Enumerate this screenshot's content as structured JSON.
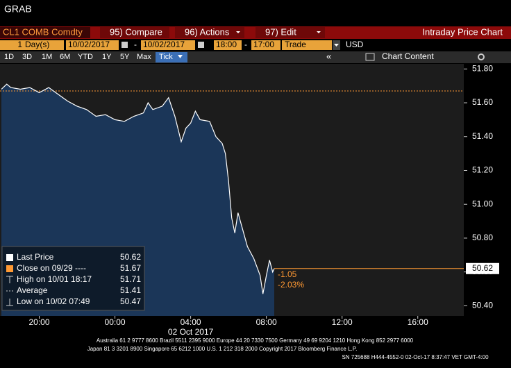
{
  "header": {
    "title": "GRAB"
  },
  "toolbar": {
    "security": "CL1 COMB Comdty",
    "buttons": [
      "95) Compare",
      "96) Actions",
      "97) Edit"
    ],
    "panel_title": "Intraday Price Chart"
  },
  "settings": {
    "period": "1",
    "unit": "Day(s)",
    "start_date": "10/02/2017",
    "separator": "-",
    "end_date": "10/02/2017",
    "field": "Trade",
    "currency": "USD"
  },
  "range_buttons": [
    "1D",
    "3D",
    "1M",
    "6M",
    "YTD",
    "1Y",
    "5Y",
    "Max",
    "Tick"
  ],
  "chart_content": "Chart Content",
  "footer": {
    "lines": [
      "Australia 61 2 9777 8600 Brazil 5511 2395 9000 Europe 44 20 7330 7500 Germany 49 69 9204 1210 Hong Kong 852 2977 6000",
      "Japan 81 3 3201 8900     Singapore 65 6212 1000     U.S. 1 212 318 2000     Copyright 2017 Bloomberg Finance L.P.",
      "SN 725688 H444-4552-0 02-Oct-17  8:37:47 VET  GMT-4:00"
    ]
  },
  "chart_data": {
    "type": "line",
    "x_label": "02 Oct 2017",
    "series": [
      {
        "color": "#ffffff",
        "area_color": "#1b3658",
        "x": [
          "18:00",
          "18:17",
          "18:30",
          "19:00",
          "19:30",
          "20:00",
          "20:30",
          "21:00",
          "21:30",
          "22:00",
          "22:30",
          "23:00",
          "23:30",
          "00:00",
          "00:30",
          "01:00",
          "01:30",
          "01:45",
          "02:00",
          "02:30",
          "02:50",
          "03:10",
          "03:30",
          "03:45",
          "04:00",
          "04:15",
          "04:30",
          "05:00",
          "05:20",
          "05:40",
          "05:50",
          "06:00",
          "06:10",
          "06:20",
          "06:30",
          "06:45",
          "07:00",
          "07:20",
          "07:40",
          "07:49",
          "08:00",
          "08:10",
          "08:20",
          "08:25"
        ],
        "values": [
          51.68,
          51.71,
          51.69,
          51.68,
          51.69,
          51.66,
          51.69,
          51.65,
          51.61,
          51.58,
          51.56,
          51.52,
          51.53,
          51.5,
          51.49,
          51.52,
          51.54,
          51.6,
          51.56,
          51.58,
          51.63,
          51.52,
          51.37,
          51.45,
          51.48,
          51.55,
          51.5,
          51.49,
          51.4,
          51.36,
          51.3,
          51.14,
          50.92,
          50.83,
          50.95,
          50.85,
          50.75,
          50.68,
          50.58,
          50.47,
          50.58,
          50.67,
          50.6,
          50.62
        ]
      }
    ],
    "xlim": [
      "18:00",
      "17:00"
    ],
    "xticks": [
      "20:00",
      "00:00",
      "04:00",
      "08:00",
      "12:00",
      "16:00"
    ],
    "ylim": [
      50.34,
      51.83
    ],
    "yticks": [
      {
        "value": 50.4,
        "label": "50.40"
      },
      {
        "value": 50.6,
        "label": "50.60"
      },
      {
        "value": 50.8,
        "label": "50.80"
      },
      {
        "value": 51,
        "label": "51.00"
      },
      {
        "value": 51.2,
        "label": "51.20"
      },
      {
        "value": 51.4,
        "label": "51.40"
      },
      {
        "value": 51.6,
        "label": "51.60"
      },
      {
        "value": 51.8,
        "label": "51.80"
      }
    ],
    "grid": false,
    "legend": [
      {
        "name": "Last Price",
        "value": 50.62,
        "color": "#ffffff"
      },
      {
        "name": "Close on 09/29 ----",
        "value": 51.67,
        "color": "#ff9933"
      },
      {
        "name": "High on 10/01 18:17",
        "value": 51.71,
        "color": "#cccccc"
      },
      {
        "name": "Average",
        "value": 51.41,
        "color": "#cccccc"
      },
      {
        "name": "Low on 10/02 07:49",
        "value": 50.47,
        "color": "#cccccc"
      }
    ],
    "annotations": [
      "-1.05",
      "-2.03%"
    ],
    "annotation_color": "#ff9933"
  }
}
